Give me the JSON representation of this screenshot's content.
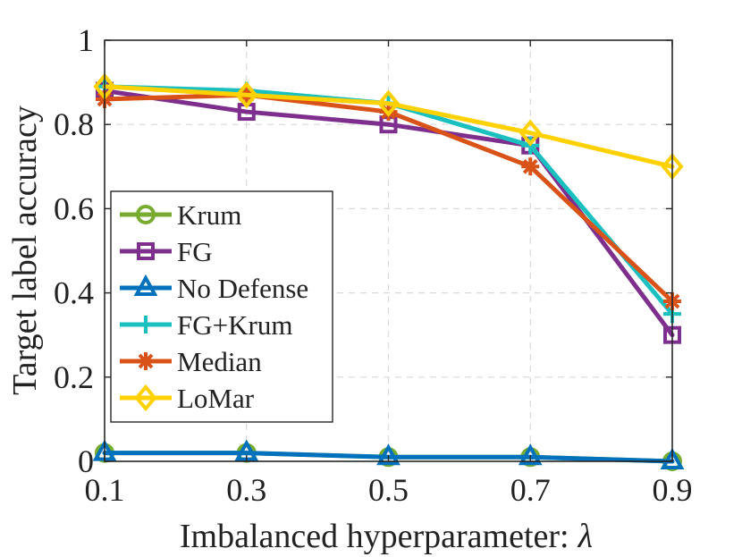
{
  "chart_data": {
    "type": "line",
    "title": "",
    "xlabel": "Imbalanced hyperparameter:",
    "xlabel_symbol": "λ",
    "ylabel": "Target label accuracy",
    "x": [
      0.1,
      0.3,
      0.5,
      0.7,
      0.9
    ],
    "x_tick_labels": [
      "0.1",
      "0.3",
      "0.5",
      "0.7",
      "0.9"
    ],
    "y_tick_values": [
      0,
      0.2,
      0.4,
      0.6,
      0.8,
      1
    ],
    "y_tick_labels": [
      "0",
      "0.2",
      "0.4",
      "0.6",
      "0.8",
      "1"
    ],
    "xlim": [
      0.1,
      0.9
    ],
    "ylim": [
      0,
      1
    ],
    "grid": true,
    "legend_position": "center-left",
    "series": [
      {
        "name": "Krum",
        "color": "#77ac30",
        "marker": "circle",
        "values": [
          0.02,
          0.02,
          0.01,
          0.01,
          0.0
        ]
      },
      {
        "name": "FG",
        "color": "#7e2f8e",
        "marker": "square",
        "values": [
          0.88,
          0.83,
          0.8,
          0.75,
          0.3
        ]
      },
      {
        "name": "No Defense",
        "color": "#0072bd",
        "marker": "triangle",
        "values": [
          0.02,
          0.02,
          0.01,
          0.01,
          0.0
        ]
      },
      {
        "name": "FG+Krum",
        "color": "#1ac0c0",
        "marker": "plus",
        "values": [
          0.89,
          0.88,
          0.85,
          0.75,
          0.35
        ]
      },
      {
        "name": "Median",
        "color": "#d95319",
        "marker": "asterisk",
        "values": [
          0.86,
          0.87,
          0.83,
          0.7,
          0.38
        ]
      },
      {
        "name": "LoMar",
        "color": "#ffd100",
        "marker": "diamond",
        "values": [
          0.89,
          0.87,
          0.85,
          0.78,
          0.7
        ]
      }
    ]
  }
}
